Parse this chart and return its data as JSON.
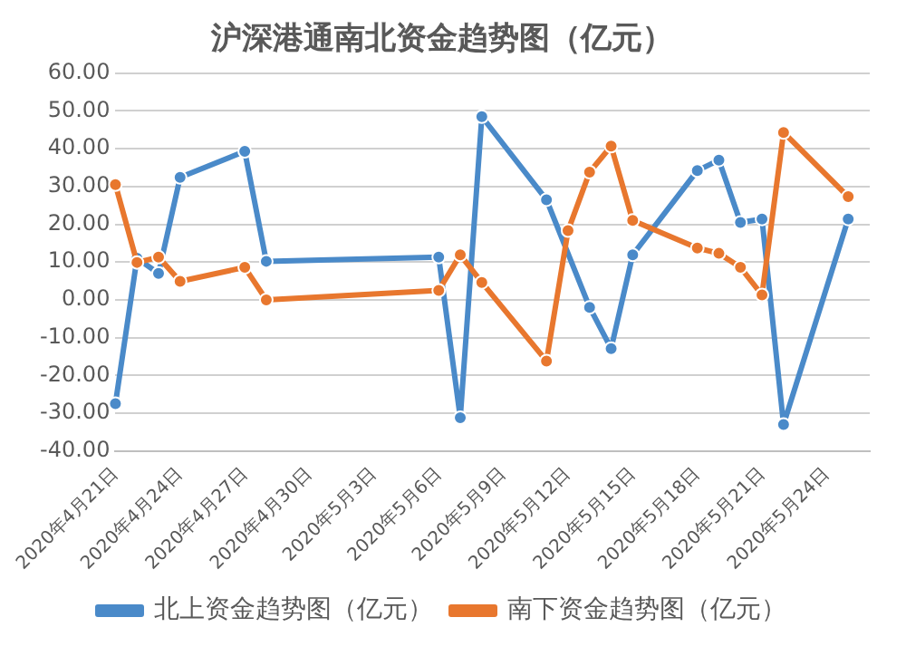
{
  "chart_data": {
    "type": "line",
    "title": "沪深港通南北资金趋势图（亿元）",
    "series": [
      {
        "name": "北上资金趋势图（亿元）",
        "color": "#4a8ac9",
        "x": [
          "2020-04-21",
          "2020-04-22",
          "2020-04-23",
          "2020-04-24",
          "2020-04-27",
          "2020-04-28",
          "2020-05-06",
          "2020-05-07",
          "2020-05-08",
          "2020-05-11",
          "2020-05-13",
          "2020-05-14",
          "2020-05-15",
          "2020-05-18",
          "2020-05-19",
          "2020-05-20",
          "2020-05-21",
          "2020-05-22",
          "2020-05-25"
        ],
        "values": [
          -27.5,
          11,
          7,
          32.4,
          39.3,
          10.2,
          11.3,
          -31.2,
          48.5,
          26.5,
          -2,
          -12.9,
          11.9,
          34.2,
          37,
          20.5,
          21.4,
          -33,
          21.4
        ]
      },
      {
        "name": "南下资金趋势图（亿元）",
        "color": "#e8772e",
        "x": [
          "2020-04-21",
          "2020-04-22",
          "2020-04-23",
          "2020-04-24",
          "2020-04-27",
          "2020-04-28",
          "2020-05-06",
          "2020-05-07",
          "2020-05-08",
          "2020-05-11",
          "2020-05-12",
          "2020-05-13",
          "2020-05-14",
          "2020-05-15",
          "2020-05-18",
          "2020-05-19",
          "2020-05-20",
          "2020-05-21",
          "2020-05-22",
          "2020-05-25"
        ],
        "values": [
          30.5,
          9.9,
          11.3,
          4.9,
          8.6,
          0,
          2.5,
          11.9,
          4.6,
          -16.2,
          18.3,
          33.8,
          40.7,
          21,
          13.7,
          12.3,
          8.6,
          1.3,
          44.3,
          27.3
        ]
      }
    ],
    "xlim": [
      "2020-04-21",
      "2020-05-26"
    ],
    "xticks": [
      {
        "value": "2020-04-21",
        "label": "2020年4月21日"
      },
      {
        "value": "2020-04-24",
        "label": "2020年4月24日"
      },
      {
        "value": "2020-04-27",
        "label": "2020年4月27日"
      },
      {
        "value": "2020-04-30",
        "label": "2020年4月30日"
      },
      {
        "value": "2020-05-03",
        "label": "2020年5月3日"
      },
      {
        "value": "2020-05-06",
        "label": "2020年5月6日"
      },
      {
        "value": "2020-05-09",
        "label": "2020年5月9日"
      },
      {
        "value": "2020-05-12",
        "label": "2020年5月12日"
      },
      {
        "value": "2020-05-15",
        "label": "2020年5月15日"
      },
      {
        "value": "2020-05-18",
        "label": "2020年5月18日"
      },
      {
        "value": "2020-05-21",
        "label": "2020年5月21日"
      },
      {
        "value": "2020-05-24",
        "label": "2020年5月24日"
      }
    ],
    "ylim": [
      -40,
      60
    ],
    "yticks": [
      {
        "value": -40,
        "label": "-40.00"
      },
      {
        "value": -30,
        "label": "-30.00"
      },
      {
        "value": -20,
        "label": "-20.00"
      },
      {
        "value": -10,
        "label": "-10.00"
      },
      {
        "value": 0,
        "label": "0.00"
      },
      {
        "value": 10,
        "label": "10.00"
      },
      {
        "value": 20,
        "label": "20.00"
      },
      {
        "value": 30,
        "label": "30.00"
      },
      {
        "value": 40,
        "label": "40.00"
      },
      {
        "value": 50,
        "label": "50.00"
      },
      {
        "value": 60,
        "label": "60.00"
      }
    ],
    "grid": "y",
    "legend": "bottom",
    "marker": "circle",
    "line_style": "solid"
  }
}
